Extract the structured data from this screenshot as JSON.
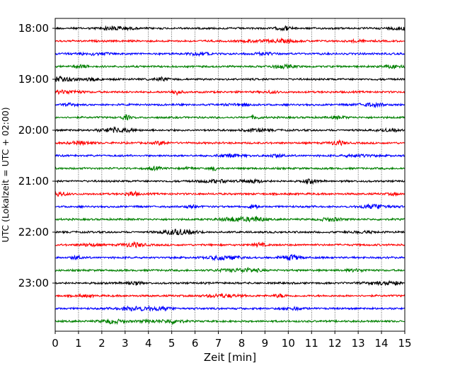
{
  "chart_data": {
    "type": "line",
    "title": "",
    "xlabel": "Zeit  [min]",
    "ylabel": "UTC (Lokalzeit = UTC + 02:00)",
    "xlim": [
      0,
      15
    ],
    "x_ticks": [
      "0",
      "1",
      "2",
      "3",
      "4",
      "5",
      "6",
      "7",
      "8",
      "9",
      "10",
      "11",
      "12",
      "13",
      "14",
      "15"
    ],
    "y_ticks": [
      "18:00",
      "19:00",
      "20:00",
      "21:00",
      "22:00",
      "23:00"
    ],
    "row_interval_minutes": 15,
    "grid": "vertical dotted at each minute",
    "colors": [
      "#000000",
      "#ff0000",
      "#0000ff",
      "#008000"
    ],
    "series": [
      {
        "start": "18:00",
        "color": "#000000"
      },
      {
        "start": "18:15",
        "color": "#ff0000"
      },
      {
        "start": "18:30",
        "color": "#0000ff"
      },
      {
        "start": "18:45",
        "color": "#008000"
      },
      {
        "start": "19:00",
        "color": "#000000"
      },
      {
        "start": "19:15",
        "color": "#ff0000"
      },
      {
        "start": "19:30",
        "color": "#0000ff"
      },
      {
        "start": "19:45",
        "color": "#008000"
      },
      {
        "start": "20:00",
        "color": "#000000"
      },
      {
        "start": "20:15",
        "color": "#ff0000"
      },
      {
        "start": "20:30",
        "color": "#0000ff"
      },
      {
        "start": "20:45",
        "color": "#008000"
      },
      {
        "start": "21:00",
        "color": "#000000"
      },
      {
        "start": "21:15",
        "color": "#ff0000"
      },
      {
        "start": "21:30",
        "color": "#0000ff"
      },
      {
        "start": "21:45",
        "color": "#008000"
      },
      {
        "start": "22:00",
        "color": "#000000"
      },
      {
        "start": "22:15",
        "color": "#ff0000"
      },
      {
        "start": "22:30",
        "color": "#0000ff"
      },
      {
        "start": "22:45",
        "color": "#008000"
      },
      {
        "start": "23:00",
        "color": "#000000"
      },
      {
        "start": "23:15",
        "color": "#ff0000"
      },
      {
        "start": "23:30",
        "color": "#0000ff"
      },
      {
        "start": "23:45",
        "color": "#008000"
      }
    ]
  }
}
